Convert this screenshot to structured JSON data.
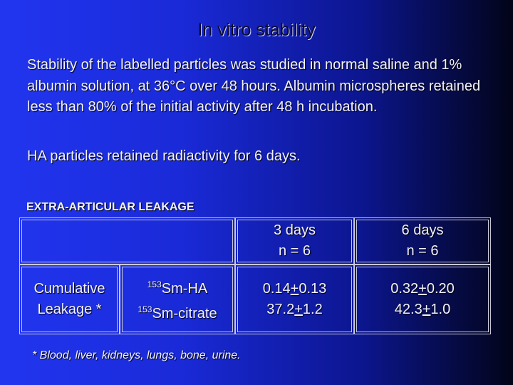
{
  "slide": {
    "title": "In vitro stability",
    "paragraphs": [
      "Stability of the labelled particles was studied in normal saline and 1% albumin solution, at 36°C over 48 hours. Albumin microspheres retained less than 80% of the initial activity after 48 h incubation.",
      "HA particles retained radiactivity for 6 days."
    ],
    "table_caption": "EXTRA-ARTICULAR LEAKAGE",
    "table": {
      "header": [
        [
          "3 days",
          "n = 6"
        ],
        [
          "6 days",
          "n = 6"
        ]
      ],
      "row_label": [
        "Cumulative",
        "Leakage *"
      ],
      "agents": [
        {
          "sup": "153",
          "name": "Sm-HA"
        },
        {
          "sup": "153",
          "name": "Sm-citrate"
        }
      ],
      "values": [
        [
          [
            "0.14",
            "+",
            "0.13"
          ],
          [
            "37.2",
            "+",
            "1.2"
          ]
        ],
        [
          [
            "0.32",
            "+",
            "0.20"
          ],
          [
            "42.3",
            "+",
            "1.0"
          ]
        ]
      ]
    },
    "footnote": "* Blood, liver, kidneys, lungs, bone, urine."
  }
}
